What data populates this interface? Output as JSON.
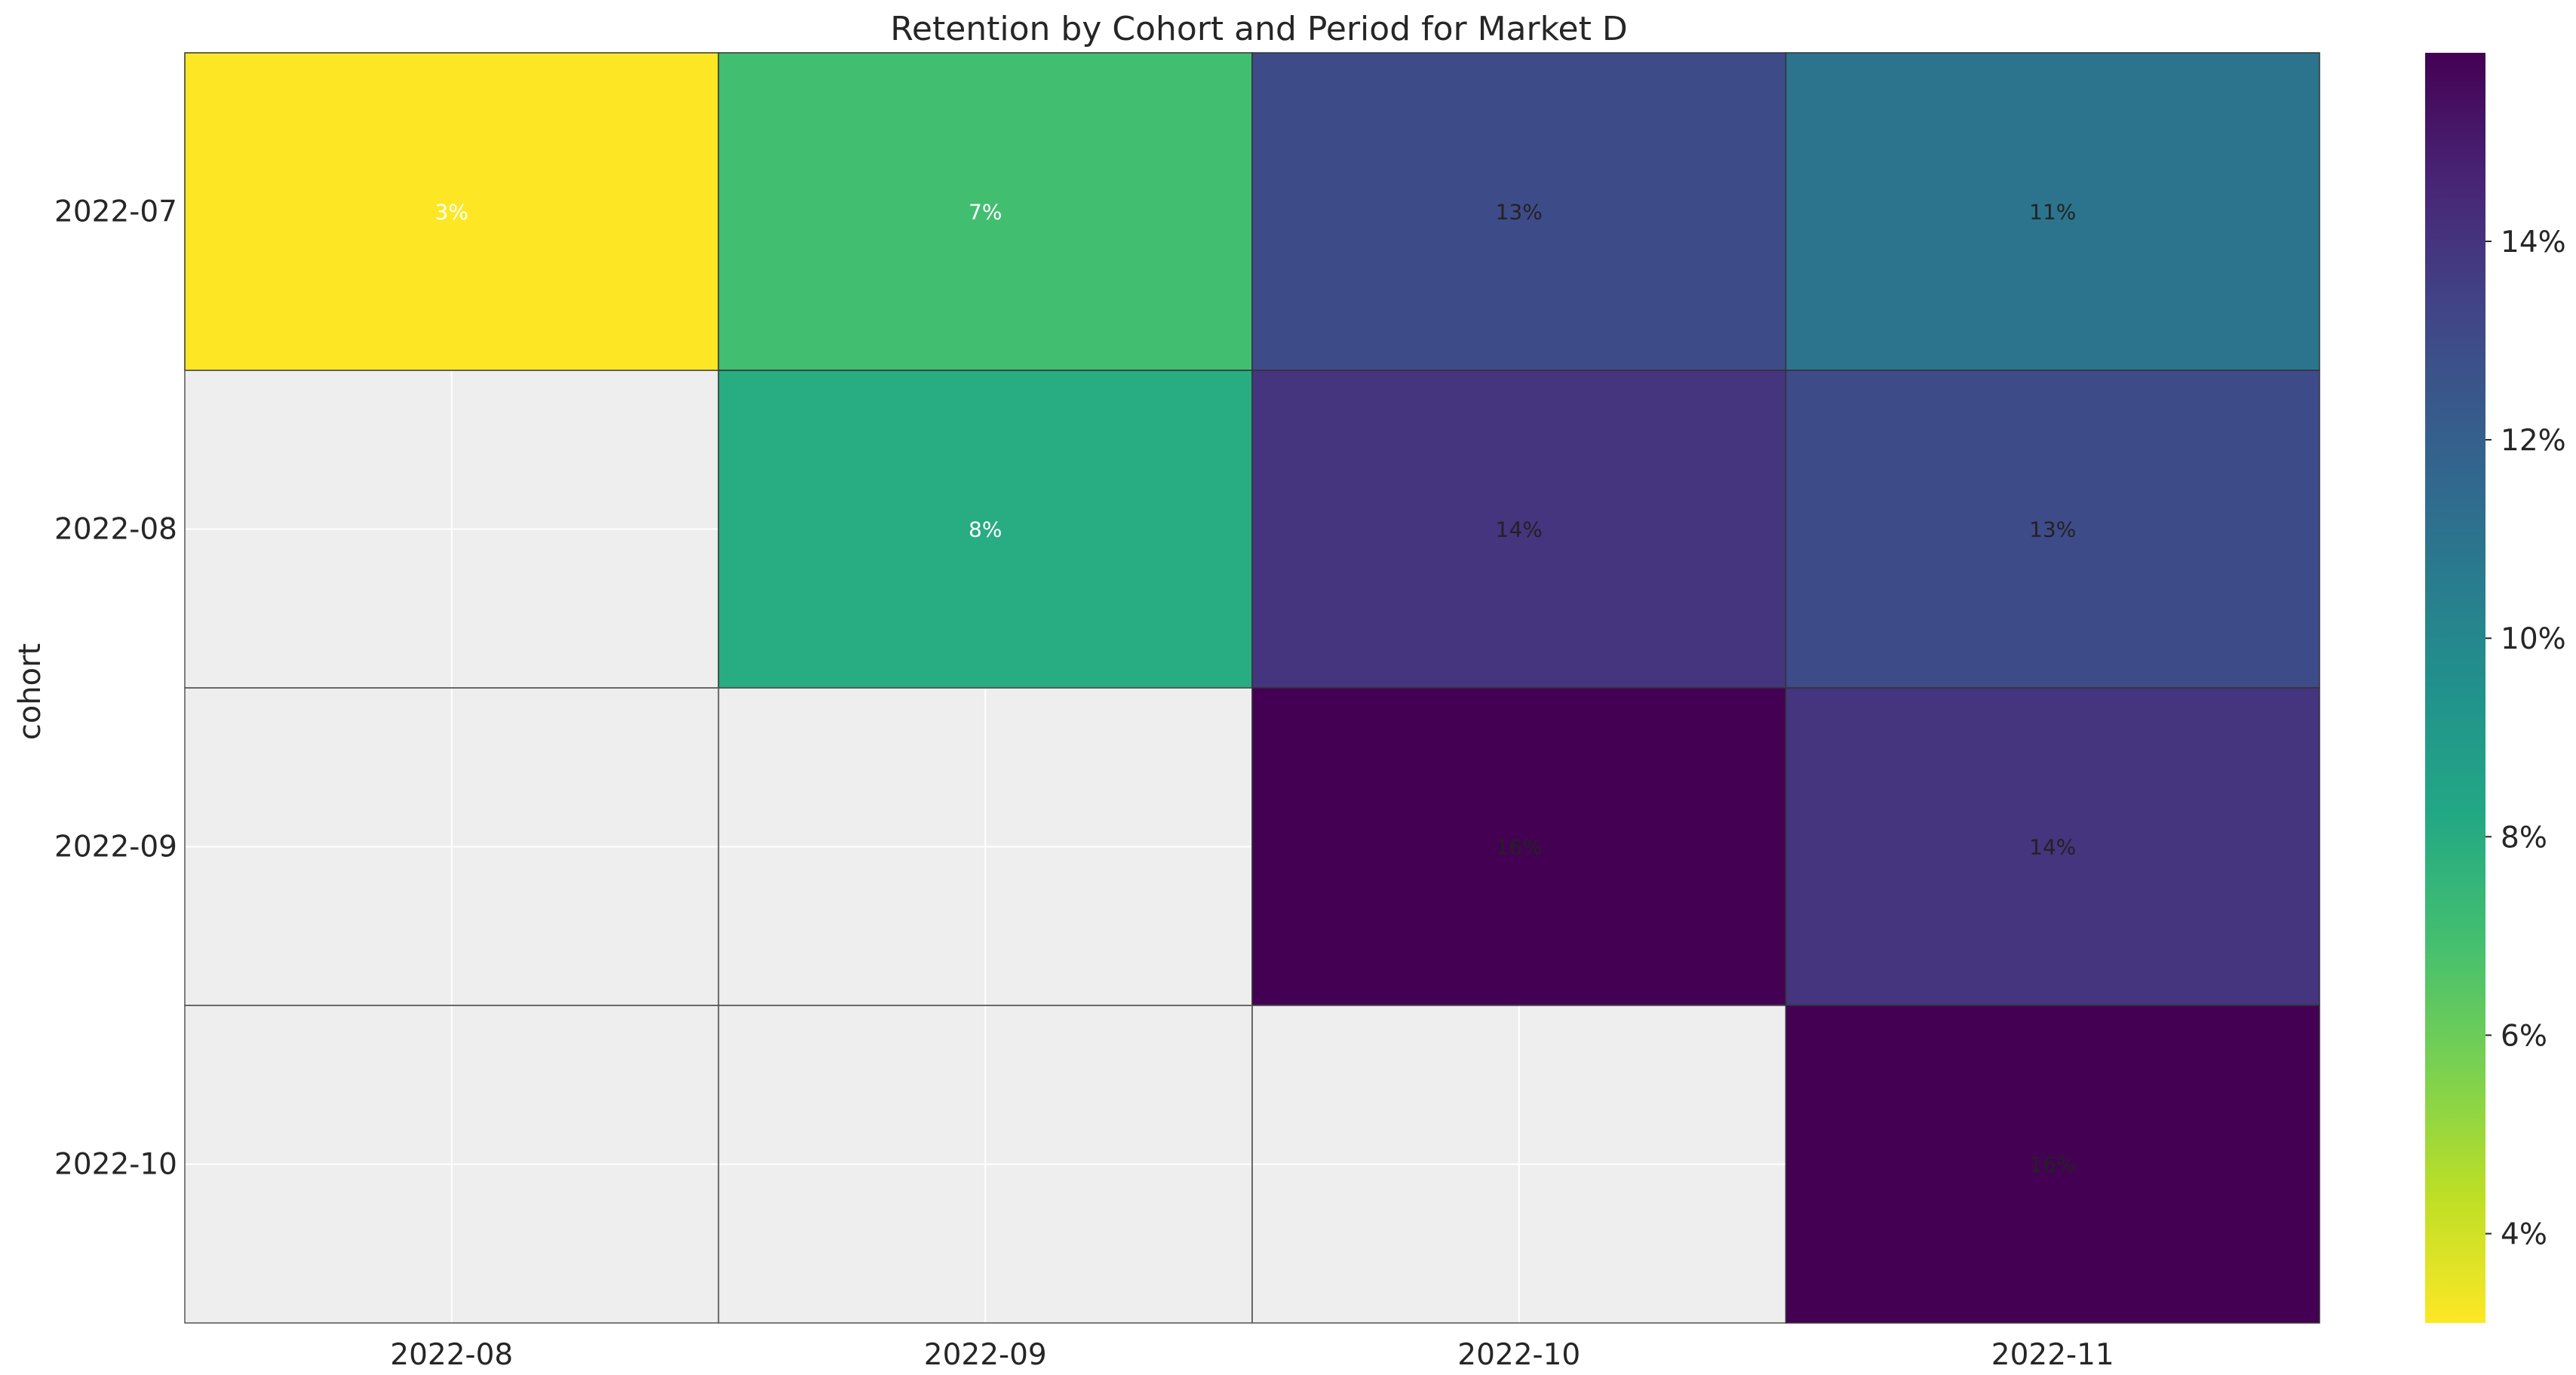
{
  "chart_data": {
    "type": "heatmap",
    "title": "Retention by Cohort and Period for Market D",
    "xlabel": "",
    "ylabel": "cohort",
    "x_categories": [
      "2022-08",
      "2022-09",
      "2022-10",
      "2022-11"
    ],
    "y_categories": [
      "2022-07",
      "2022-08",
      "2022-09",
      "2022-10"
    ],
    "values": [
      [
        3,
        7,
        13,
        11
      ],
      [
        null,
        8,
        14,
        13
      ],
      [
        null,
        null,
        16,
        14
      ],
      [
        null,
        null,
        null,
        16
      ]
    ],
    "cell_labels": [
      [
        "3%",
        "7%",
        "13%",
        "11%"
      ],
      [
        "",
        "8%",
        "14%",
        "13%"
      ],
      [
        "",
        "",
        "16%",
        "14%"
      ],
      [
        "",
        "",
        "",
        "16%"
      ]
    ],
    "colormap": "viridis_r",
    "color_range": [
      3.1,
      15.9
    ],
    "colorbar_ticks": [
      4,
      6,
      8,
      10,
      12,
      14
    ],
    "colorbar_tick_labels": [
      "4%",
      "6%",
      "8%",
      "10%",
      "12%",
      "14%"
    ],
    "missing_color": "#eeeeee",
    "grid": true
  }
}
